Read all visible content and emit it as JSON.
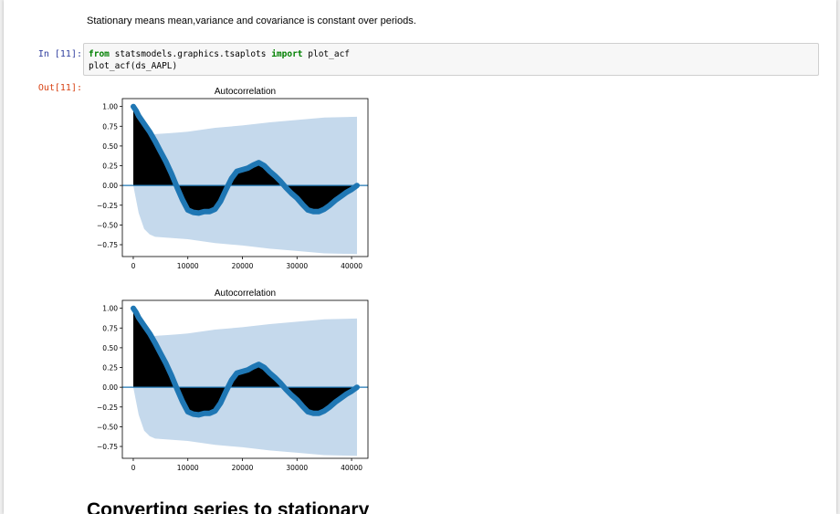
{
  "markdown": {
    "stationary_text": "Stationary means mean,variance and covariance is constant over periods."
  },
  "cell": {
    "in_prompt": "In [11]:",
    "out_prompt": "Out[11]:",
    "code_line1_kw_from": "from",
    "code_line1_module": " statsmodels.graphics.tsaplots ",
    "code_line1_kw_import": "import",
    "code_line1_name": " plot_acf",
    "code_line2": "plot_acf(ds_AAPL)"
  },
  "next_heading": "Converting series to stationary",
  "colors": {
    "series": "#1f77b4",
    "confidence_band": "#c5d9ec",
    "fill": "#000000",
    "prompt_in": "#303f9f",
    "prompt_out": "#d84315",
    "keyword": "#008000"
  },
  "chart_data": [
    {
      "type": "area",
      "title": "Autocorrelation",
      "xlabel": "",
      "ylabel": "",
      "xlim": [
        -2000,
        43000
      ],
      "ylim": [
        -0.9,
        1.1
      ],
      "xticks": [
        0,
        10000,
        20000,
        30000,
        40000
      ],
      "xtick_labels": [
        "0",
        "10000",
        "20000",
        "30000",
        "40000"
      ],
      "yticks": [
        1.0,
        0.75,
        0.5,
        0.25,
        0.0,
        -0.25,
        -0.5,
        -0.75
      ],
      "ytick_labels": [
        "1.00",
        "0.75",
        "0.50",
        "0.25",
        "0.00",
        "−0.25",
        "−0.50",
        "−0.75"
      ],
      "grid": false,
      "acf": {
        "x": [
          0,
          500,
          1000,
          2000,
          3000,
          4000,
          5000,
          6000,
          7000,
          8000,
          9000,
          10000,
          11000,
          12000,
          13000,
          14000,
          15000,
          16000,
          17000,
          18000,
          19000,
          20000,
          21000,
          22000,
          23000,
          24000,
          25000,
          26000,
          27000,
          28000,
          29000,
          30000,
          31000,
          32000,
          33000,
          34000,
          35000,
          36000,
          37000,
          38000,
          39000,
          40000,
          41000
        ],
        "y": [
          1.0,
          0.95,
          0.88,
          0.78,
          0.68,
          0.56,
          0.43,
          0.3,
          0.15,
          -0.02,
          -0.18,
          -0.31,
          -0.34,
          -0.35,
          -0.33,
          -0.33,
          -0.3,
          -0.2,
          -0.05,
          0.09,
          0.18,
          0.2,
          0.22,
          0.26,
          0.29,
          0.25,
          0.18,
          0.12,
          0.05,
          -0.03,
          -0.1,
          -0.16,
          -0.24,
          -0.31,
          -0.33,
          -0.33,
          -0.3,
          -0.25,
          -0.19,
          -0.14,
          -0.09,
          -0.05,
          0.0
        ]
      },
      "confidence_band": {
        "x": [
          0,
          1000,
          2000,
          3000,
          4000,
          6000,
          8000,
          10000,
          15000,
          20000,
          25000,
          30000,
          35000,
          41000
        ],
        "upper": [
          0.0,
          0.35,
          0.55,
          0.62,
          0.65,
          0.66,
          0.67,
          0.68,
          0.73,
          0.76,
          0.8,
          0.83,
          0.86,
          0.87
        ],
        "lower": [
          0.0,
          -0.35,
          -0.55,
          -0.62,
          -0.65,
          -0.66,
          -0.67,
          -0.68,
          -0.73,
          -0.76,
          -0.8,
          -0.83,
          -0.86,
          -0.87
        ]
      }
    },
    {
      "type": "area",
      "title": "Autocorrelation",
      "xlabel": "",
      "ylabel": "",
      "xlim": [
        -2000,
        43000
      ],
      "ylim": [
        -0.9,
        1.1
      ],
      "xticks": [
        0,
        10000,
        20000,
        30000,
        40000
      ],
      "xtick_labels": [
        "0",
        "10000",
        "20000",
        "30000",
        "40000"
      ],
      "yticks": [
        1.0,
        0.75,
        0.5,
        0.25,
        0.0,
        -0.25,
        -0.5,
        -0.75
      ],
      "ytick_labels": [
        "1.00",
        "0.75",
        "0.50",
        "0.25",
        "0.00",
        "−0.25",
        "−0.50",
        "−0.75"
      ],
      "grid": false,
      "acf": {
        "x": [
          0,
          500,
          1000,
          2000,
          3000,
          4000,
          5000,
          6000,
          7000,
          8000,
          9000,
          10000,
          11000,
          12000,
          13000,
          14000,
          15000,
          16000,
          17000,
          18000,
          19000,
          20000,
          21000,
          22000,
          23000,
          24000,
          25000,
          26000,
          27000,
          28000,
          29000,
          30000,
          31000,
          32000,
          33000,
          34000,
          35000,
          36000,
          37000,
          38000,
          39000,
          40000,
          41000
        ],
        "y": [
          1.0,
          0.95,
          0.88,
          0.78,
          0.68,
          0.56,
          0.43,
          0.3,
          0.15,
          -0.02,
          -0.18,
          -0.31,
          -0.34,
          -0.35,
          -0.33,
          -0.33,
          -0.3,
          -0.2,
          -0.05,
          0.09,
          0.18,
          0.2,
          0.22,
          0.26,
          0.29,
          0.25,
          0.18,
          0.12,
          0.05,
          -0.03,
          -0.1,
          -0.16,
          -0.24,
          -0.31,
          -0.33,
          -0.33,
          -0.3,
          -0.25,
          -0.19,
          -0.14,
          -0.09,
          -0.05,
          0.0
        ]
      },
      "confidence_band": {
        "x": [
          0,
          1000,
          2000,
          3000,
          4000,
          6000,
          8000,
          10000,
          15000,
          20000,
          25000,
          30000,
          35000,
          41000
        ],
        "upper": [
          0.0,
          0.35,
          0.55,
          0.62,
          0.65,
          0.66,
          0.67,
          0.68,
          0.73,
          0.76,
          0.8,
          0.83,
          0.86,
          0.87
        ],
        "lower": [
          0.0,
          -0.35,
          -0.55,
          -0.62,
          -0.65,
          -0.66,
          -0.67,
          -0.68,
          -0.73,
          -0.76,
          -0.8,
          -0.83,
          -0.86,
          -0.87
        ]
      }
    }
  ]
}
